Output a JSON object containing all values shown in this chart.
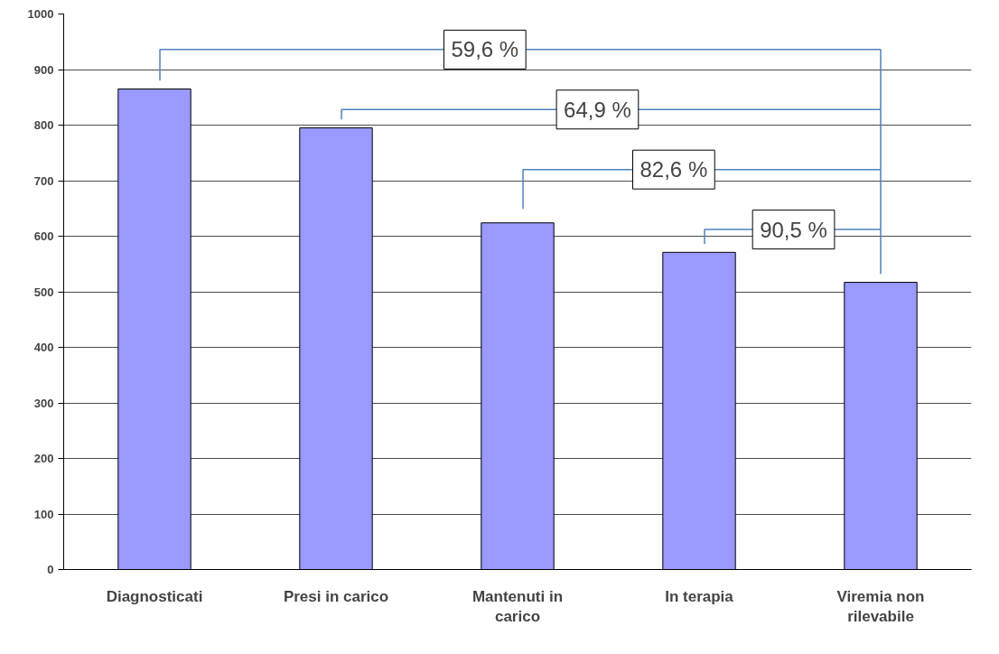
{
  "chart_data": {
    "type": "bar",
    "categories": [
      "Diagnosticati",
      "Presi in carico",
      "Mantenuti in carico",
      "In terapia",
      "Viremia non rilevabile"
    ],
    "values": [
      865,
      795,
      624,
      571,
      517
    ],
    "color": "#9999ff",
    "ylim": [
      0,
      1000
    ],
    "yticks": [
      0,
      100,
      200,
      300,
      400,
      500,
      600,
      700,
      800,
      900,
      1000
    ],
    "grid": "y",
    "annotations": [
      "59,6 %",
      "64,9 %",
      "82,6 %",
      "90,5 %"
    ]
  }
}
